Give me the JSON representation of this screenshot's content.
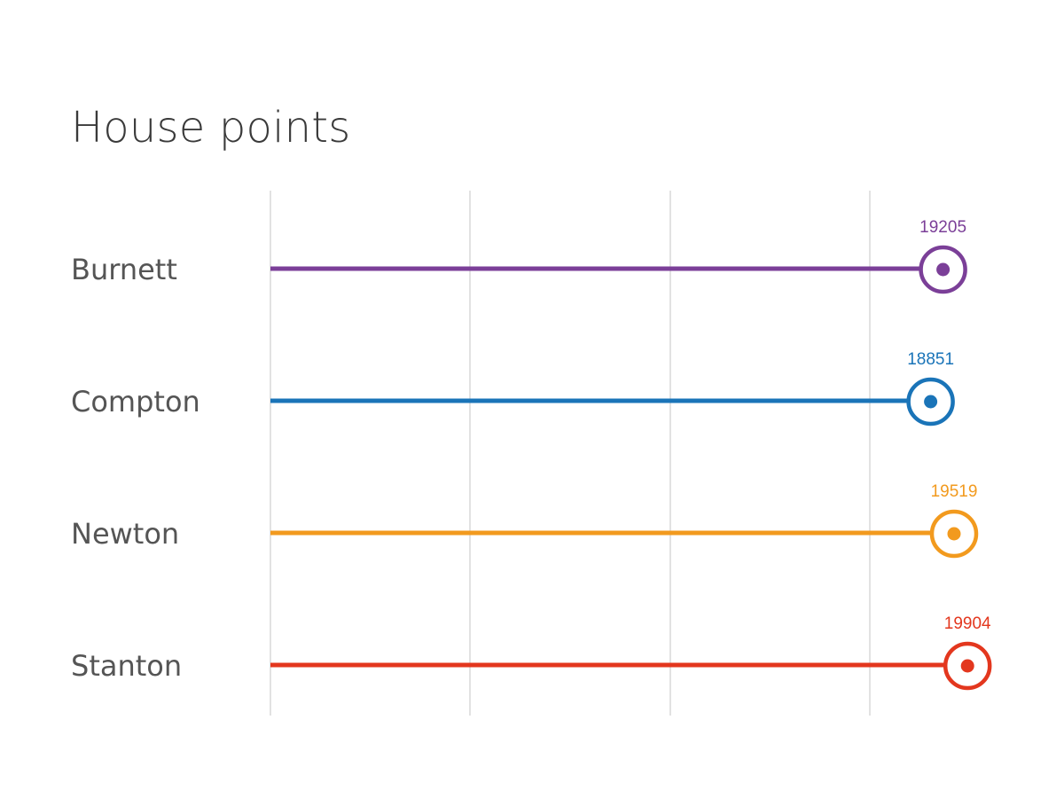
{
  "chart_data": {
    "type": "lollipop",
    "title": "House points",
    "categories": [
      "Burnett",
      "Compton",
      "Newton",
      "Stanton"
    ],
    "values": [
      19205,
      18851,
      19519,
      19904
    ],
    "colors": [
      "#7b3f98",
      "#1a74b8",
      "#f29a1e",
      "#e3371e"
    ],
    "xlabel": "",
    "ylabel": "",
    "xlim": [
      0,
      20000
    ],
    "grid": true,
    "data_labels": true,
    "legend": "none"
  }
}
